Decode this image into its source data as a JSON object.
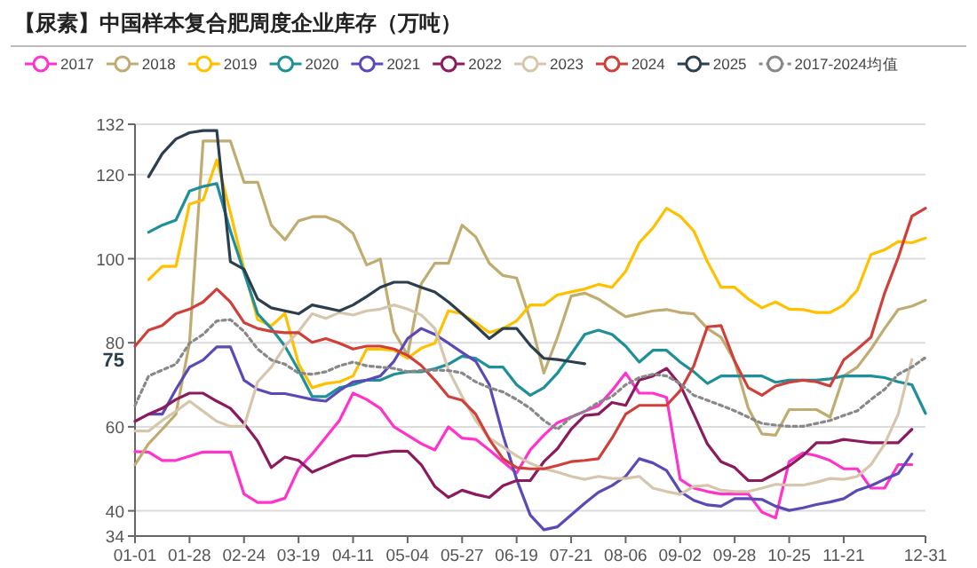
{
  "chart_data": {
    "type": "line",
    "title": "【尿素】中国样本复合肥周度企业库存（万吨）",
    "categories": [
      "01-01",
      null,
      null,
      null,
      "01-28",
      null,
      null,
      null,
      "02-24",
      null,
      null,
      null,
      "03-19",
      null,
      null,
      null,
      "04-11",
      null,
      null,
      null,
      "05-04",
      null,
      null,
      null,
      "05-27",
      null,
      null,
      null,
      "06-19",
      null,
      null,
      null,
      "07-21",
      null,
      null,
      null,
      "08-06",
      null,
      null,
      null,
      "09-02",
      null,
      null,
      null,
      "09-28",
      null,
      null,
      null,
      "10-25",
      null,
      null,
      null,
      "11-21",
      null,
      null,
      null,
      null,
      null,
      "12-31"
    ],
    "ylim": [
      34,
      132
    ],
    "yticks": [
      34,
      40,
      60,
      80,
      100,
      120,
      132
    ],
    "grid": "y",
    "legend": "top",
    "annotations": [
      "75"
    ],
    "series": [
      {
        "name": "2017",
        "color": "#ff33cc",
        "values": [
          54.1,
          54,
          52,
          52,
          53,
          54,
          54,
          54,
          44,
          42,
          42,
          43,
          50,
          53.5,
          57.5,
          61.5,
          68,
          66.5,
          64.4,
          60,
          58,
          56,
          54.5,
          60,
          57.3,
          57,
          54.5,
          51.7,
          49,
          54.5,
          58,
          61,
          62.3,
          63.7,
          65,
          68.6,
          72.8,
          68,
          68,
          67,
          47.5,
          45.4,
          44.6,
          44,
          44,
          44,
          39.7,
          38.3,
          51.7,
          53.8,
          53.1,
          52,
          50,
          50,
          45.4,
          45.4,
          51,
          51,
          null
        ]
      },
      {
        "name": "2018",
        "color": "#c0ab70",
        "values": [
          51,
          56,
          59.4,
          63,
          80,
          128,
          128,
          128,
          118.2,
          118.2,
          108,
          104.5,
          109,
          110,
          110,
          108.7,
          106,
          98.5,
          99.9,
          82.7,
          77,
          94,
          98.9,
          98.9,
          108,
          105.2,
          98.9,
          96,
          95.4,
          85.5,
          72.8,
          81.3,
          91.1,
          91.8,
          90.4,
          88.3,
          86.2,
          86.9,
          87.6,
          87.9,
          87.2,
          86.9,
          83.4,
          81.3,
          75.6,
          64.4,
          58.3,
          58,
          64.1,
          64.1,
          64.1,
          62.3,
          72.1,
          74.2,
          78.5,
          83.4,
          87.9,
          88.7,
          90.1
        ]
      },
      {
        "name": "2019",
        "color": "#ffc000",
        "values": [
          null,
          95,
          98.2,
          98.2,
          113,
          114,
          123.5,
          111,
          97.5,
          85.5,
          84,
          87,
          75,
          69.3,
          70.3,
          70.7,
          72.1,
          78.5,
          78.5,
          78.2,
          76.3,
          78.7,
          79.9,
          87.6,
          86.9,
          84.8,
          82.4,
          83.4,
          85.2,
          89,
          89,
          91.4,
          92.1,
          92.8,
          93.9,
          93.2,
          97,
          103.8,
          107.3,
          112,
          110.1,
          106.6,
          99.3,
          93.2,
          93.2,
          90.4,
          88.3,
          89.7,
          88,
          87.9,
          87.2,
          87.2,
          89,
          92.5,
          101,
          102.1,
          104.1,
          103.8,
          104.9
        ]
      },
      {
        "name": "2020",
        "color": "#1f8f99",
        "values": [
          null,
          106.3,
          108,
          109.2,
          116.1,
          117.2,
          117.9,
          106.6,
          96.8,
          86.9,
          83.4,
          79.2,
          73.5,
          67.2,
          67.2,
          69.3,
          70,
          71.1,
          71.1,
          72.5,
          73.1,
          73.1,
          73.8,
          74.9,
          76.8,
          76.3,
          74.2,
          74.2,
          70,
          67.5,
          69.3,
          72.8,
          77.3,
          82,
          83,
          82,
          79.2,
          75.4,
          78.2,
          78.2,
          75.4,
          73.1,
          70.3,
          72.1,
          72.1,
          72.1,
          72.1,
          70.6,
          71.1,
          71.1,
          71.1,
          71.4,
          72.1,
          72.1,
          72.1,
          71.7,
          70.7,
          70,
          63.2
        ]
      },
      {
        "name": "2021",
        "color": "#5a4ab8",
        "values": [
          null,
          63,
          63,
          68.9,
          74.2,
          75.9,
          79,
          79,
          71.1,
          68.9,
          67.9,
          67.9,
          67.2,
          66.5,
          66.1,
          68.6,
          70.7,
          71.1,
          72.1,
          75.6,
          81,
          83.4,
          82,
          79.9,
          77.7,
          75.6,
          70,
          58,
          47.5,
          39,
          35.5,
          36.2,
          39,
          41.8,
          44.4,
          46,
          48.2,
          52.4,
          51.4,
          49.6,
          44.6,
          42.5,
          41.4,
          41.1,
          42.9,
          42.9,
          42.7,
          41.1,
          40.1,
          40.7,
          41.5,
          42.1,
          42.9,
          44.9,
          46,
          47.5,
          48.9,
          53.5,
          null
        ]
      },
      {
        "name": "2022",
        "color": "#8b1a5e",
        "values": [
          61.3,
          63,
          64.4,
          66.5,
          68,
          68,
          66.1,
          64.4,
          60.8,
          56.6,
          50.3,
          52.8,
          52,
          49.2,
          50.6,
          52,
          53.1,
          53.1,
          53.8,
          54.2,
          54.2,
          51,
          45.8,
          43.2,
          44.9,
          43.9,
          43.2,
          46,
          47.2,
          47.2,
          51.7,
          54.8,
          59.4,
          62.7,
          63,
          65.8,
          65.1,
          71.1,
          72.1,
          73.9,
          70,
          63,
          55.9,
          51.7,
          50.3,
          47.2,
          47.2,
          48.9,
          50.7,
          53.1,
          56.2,
          56.2,
          57,
          56.6,
          56.2,
          56.2,
          56.2,
          59.4,
          null
        ]
      },
      {
        "name": "2023",
        "color": "#d6c6ac",
        "values": [
          59,
          59,
          61.5,
          63.7,
          66.1,
          63.7,
          61.3,
          60.1,
          60.1,
          70.7,
          74.2,
          79.2,
          82.7,
          86.9,
          85.8,
          87.2,
          86.6,
          87.6,
          88,
          89,
          88,
          86.6,
          83.4,
          73.5,
          67.2,
          61.5,
          57.3,
          55.2,
          53.1,
          51.3,
          50,
          49.2,
          48.2,
          47.5,
          48.2,
          47.7,
          47.7,
          48.2,
          45.4,
          44.6,
          43.9,
          45.8,
          46.1,
          44.9,
          44.6,
          44.6,
          45.4,
          46.3,
          46.1,
          46.1,
          46.8,
          47.7,
          47.5,
          48.2,
          51,
          55.9,
          63,
          76,
          null
        ]
      },
      {
        "name": "2024",
        "color": "#d0403a",
        "values": [
          79.2,
          83,
          84.1,
          86.9,
          88,
          89.7,
          92.8,
          89.7,
          84.8,
          83.4,
          82.7,
          82.4,
          82.4,
          80.1,
          81,
          79.9,
          78.5,
          79.2,
          79.2,
          78.5,
          77,
          74.6,
          71.1,
          67.2,
          66.3,
          63,
          57,
          52.4,
          50.3,
          50,
          50,
          50.8,
          51.7,
          52,
          52.4,
          57.3,
          63,
          65.1,
          65.1,
          65.1,
          68.6,
          74.5,
          83.8,
          84.1,
          75.6,
          69.3,
          67.5,
          69.7,
          70.6,
          71.1,
          70.7,
          69.7,
          75.9,
          78.5,
          81.3,
          91.8,
          100.3,
          110.1,
          112
        ]
      },
      {
        "name": "2025",
        "color": "#2b3f4e",
        "values": [
          null,
          119.5,
          125,
          128.5,
          130,
          130.5,
          130.5,
          99.3,
          97.5,
          90.4,
          88.3,
          87.6,
          86.9,
          89,
          88.3,
          87.6,
          89,
          91,
          93.2,
          94.4,
          94.4,
          93.2,
          92.1,
          89.7,
          86.9,
          84,
          81,
          83.4,
          83.4,
          79.4,
          76.3,
          76,
          75.5,
          75,
          null,
          null,
          null,
          null,
          null,
          null,
          null,
          null,
          null,
          null,
          null,
          null,
          null,
          null,
          null,
          null,
          null,
          null,
          null,
          null,
          null,
          null,
          null,
          null,
          null
        ]
      },
      {
        "name": "2017-2024均值",
        "color": "#888888",
        "line_style": "dotted",
        "values": [
          65.1,
          72.1,
          73.5,
          74.9,
          79.9,
          82,
          85.2,
          85.5,
          82.7,
          78.5,
          75.9,
          74.9,
          72.8,
          72.5,
          73.1,
          74.5,
          75.4,
          74.5,
          74.2,
          73.9,
          73.1,
          73.4,
          73.5,
          73.4,
          72.8,
          70.7,
          69.3,
          68.3,
          66.5,
          64.4,
          61.5,
          59.4,
          62.3,
          63.7,
          65.8,
          67.2,
          70,
          71.7,
          72.5,
          72.1,
          70.3,
          67.5,
          66.3,
          65.1,
          63.8,
          62.3,
          60.8,
          60.4,
          60.1,
          60.1,
          60.8,
          61.5,
          62.7,
          63.8,
          66.5,
          68.9,
          72.5,
          74.2,
          76.5
        ]
      }
    ]
  }
}
